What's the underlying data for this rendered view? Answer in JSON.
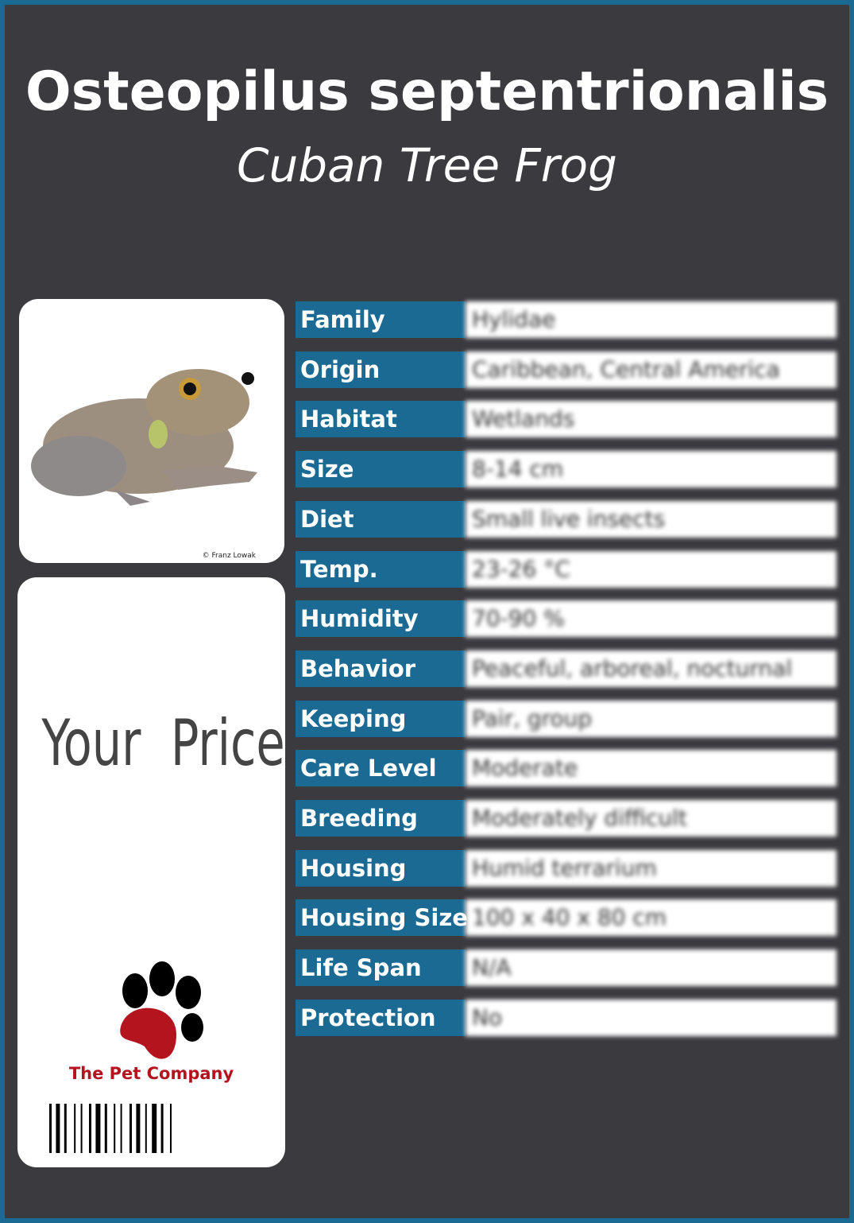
{
  "header": {
    "title": "Osteopilus septentrionalis",
    "subtitle": "Cuban Tree Frog"
  },
  "photo": {
    "credit": "© Franz Lowak"
  },
  "price": {
    "label": "Your  Price"
  },
  "logo": {
    "name": "The Pet Company"
  },
  "table": {
    "rows": [
      [
        "Family",
        "Hylidae"
      ],
      [
        "Origin",
        "Caribbean, Central America"
      ],
      [
        "Habitat",
        "Wetlands"
      ],
      [
        "Size",
        "8-14 cm"
      ],
      [
        "Diet",
        "Small live insects"
      ],
      [
        "Temp.",
        "23-26 °C"
      ],
      [
        "Humidity",
        "70-90 %"
      ],
      [
        "Behavior",
        "Peaceful, arboreal, nocturnal"
      ],
      [
        "Keeping",
        "Pair, group"
      ],
      [
        "Care Level",
        "Moderate"
      ],
      [
        "Breeding",
        "Moderately difficult"
      ],
      [
        "Housing",
        "Humid terrarium"
      ],
      [
        "Housing Size",
        "100 x 40 x 80 cm"
      ],
      [
        "Life Span",
        "N/A"
      ],
      [
        "Protection",
        "No"
      ]
    ]
  }
}
